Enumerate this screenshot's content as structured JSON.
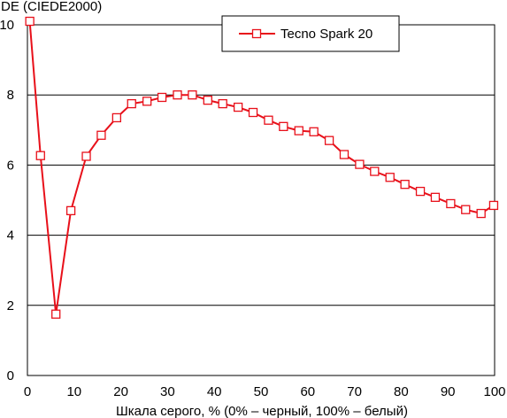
{
  "chart_data": {
    "type": "line",
    "title": "",
    "ylabel": "DE (CIEDE2000)",
    "xlabel": "Шкала серого, % (0% – черный, 100% – белый)",
    "xlim": [
      0,
      100
    ],
    "ylim": [
      0,
      10
    ],
    "xticks": [
      0,
      10,
      20,
      30,
      40,
      50,
      60,
      70,
      80,
      90,
      100
    ],
    "yticks": [
      0,
      2,
      4,
      6,
      8,
      10
    ],
    "grid": "horizontal",
    "legend_position": "top-right",
    "series": [
      {
        "name": "Tecno Spark 20",
        "color": "#e8101a",
        "marker": "square",
        "x": [
          0.5,
          2.8,
          6.1,
          9.3,
          12.6,
          15.8,
          19.1,
          22.3,
          25.6,
          28.8,
          32.1,
          35.3,
          38.6,
          41.8,
          45.1,
          48.3,
          51.6,
          54.8,
          58.1,
          61.3,
          64.6,
          67.8,
          71.1,
          74.3,
          77.6,
          80.8,
          84.1,
          87.3,
          90.6,
          93.8,
          97.1,
          99.8
        ],
        "y": [
          10.1,
          6.27,
          1.75,
          4.7,
          6.25,
          6.85,
          7.35,
          7.75,
          7.82,
          7.93,
          8.0,
          8.0,
          7.85,
          7.75,
          7.65,
          7.5,
          7.28,
          7.1,
          6.98,
          6.95,
          6.7,
          6.3,
          6.02,
          5.82,
          5.65,
          5.45,
          5.25,
          5.08,
          4.9,
          4.73,
          4.62,
          4.85
        ]
      }
    ]
  }
}
